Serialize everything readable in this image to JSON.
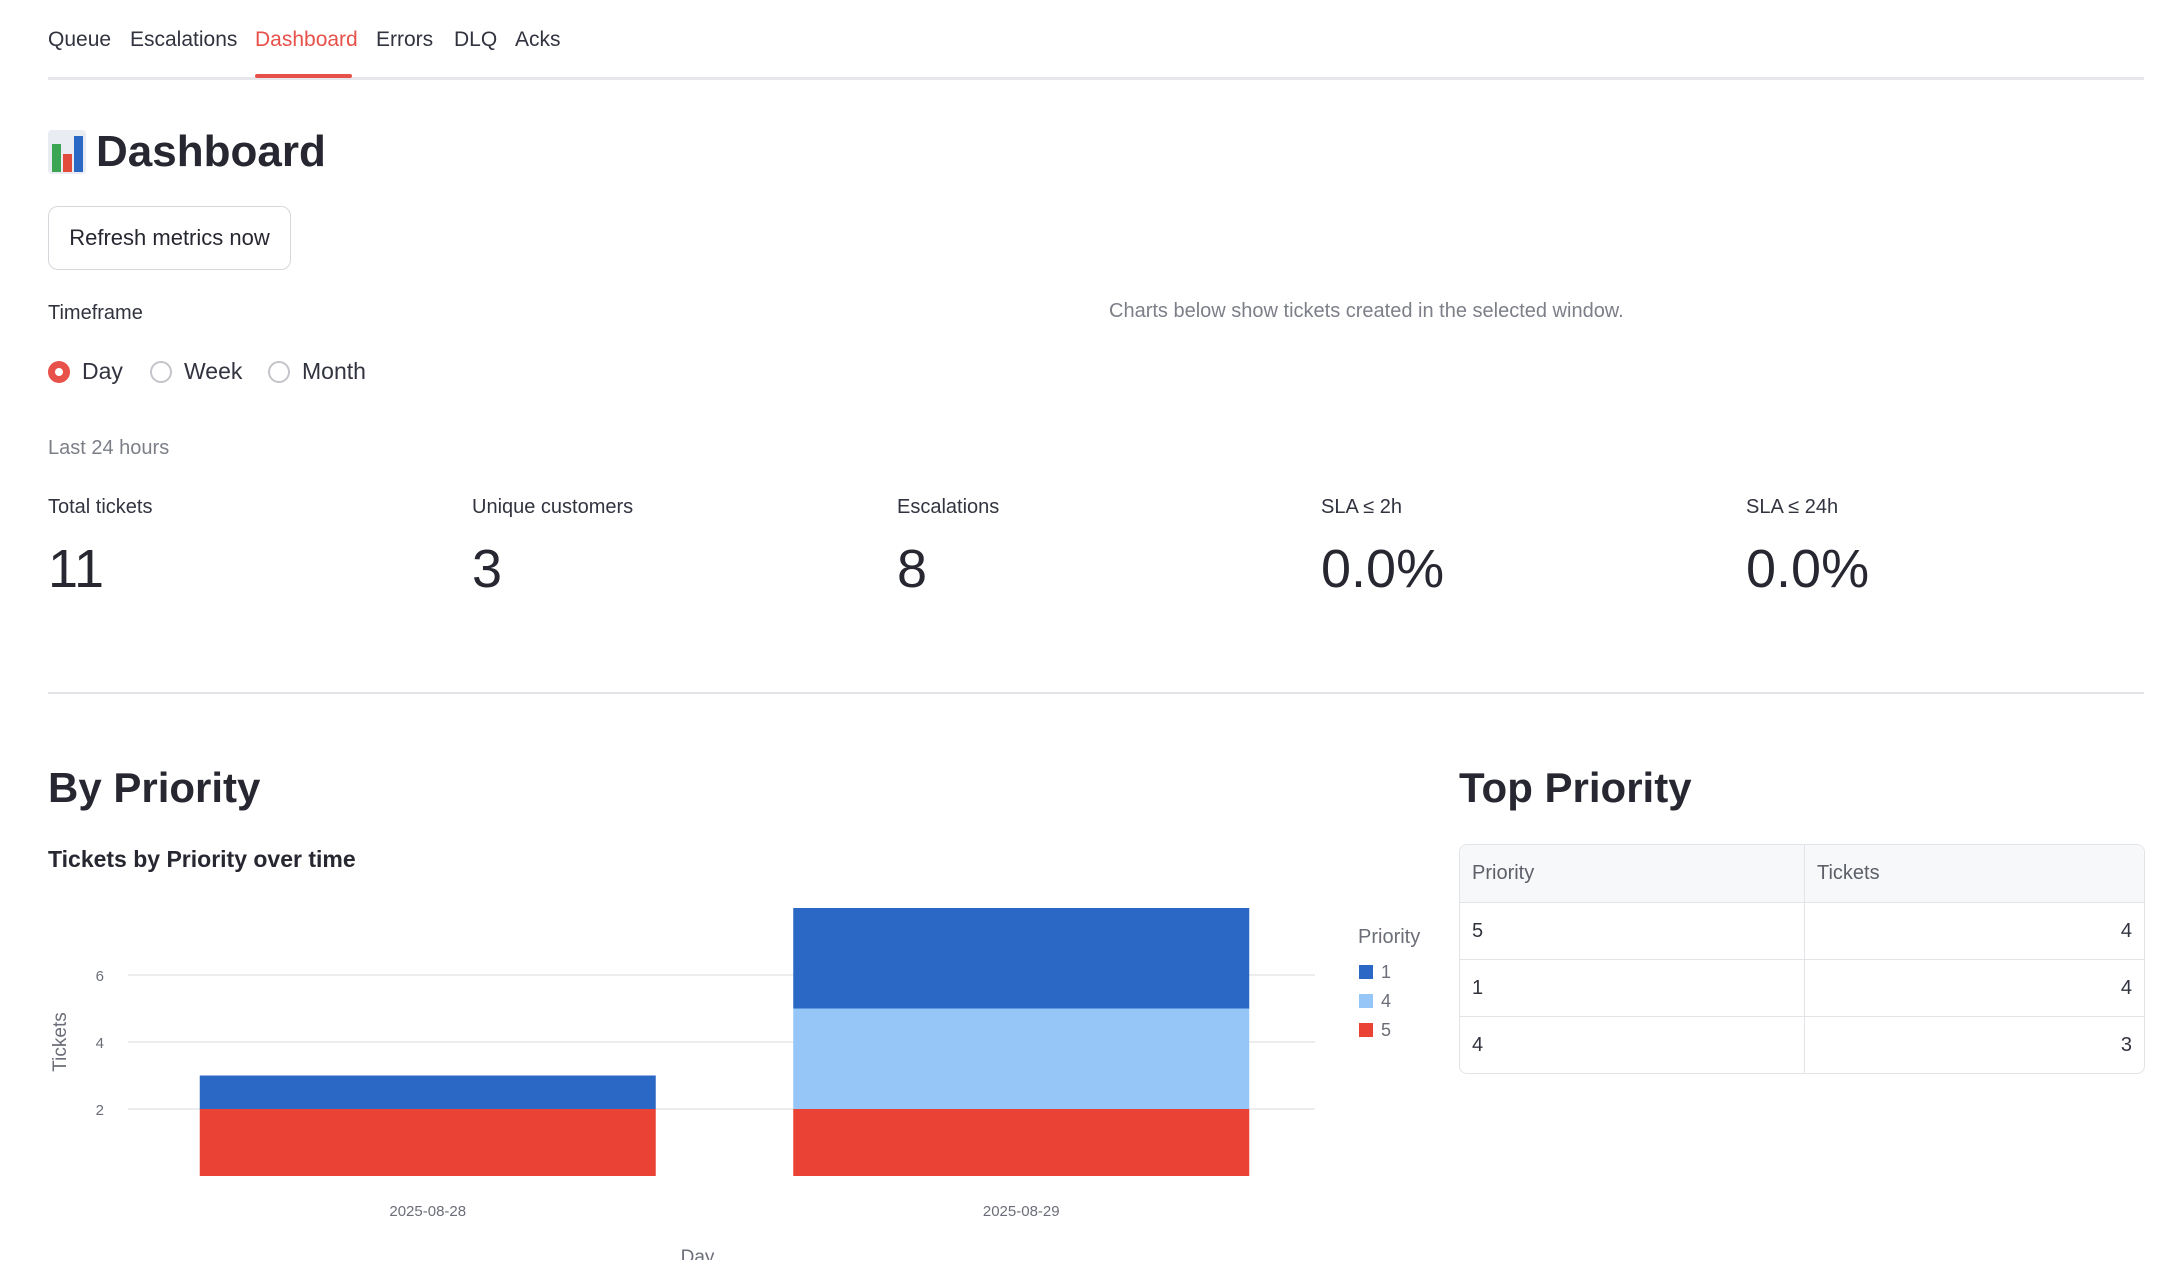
{
  "tabs": [
    {
      "label": "Queue",
      "active": false
    },
    {
      "label": "Escalations",
      "active": false
    },
    {
      "label": "Dashboard",
      "active": true
    },
    {
      "label": "Errors",
      "active": false
    },
    {
      "label": "DLQ",
      "active": false
    },
    {
      "label": "Acks",
      "active": false
    }
  ],
  "page": {
    "title": "Dashboard",
    "title_icon": "bar-chart-icon"
  },
  "refresh_button": "Refresh metrics now",
  "timeframe": {
    "label": "Timeframe",
    "options": [
      "Day",
      "Week",
      "Month"
    ],
    "selected": "Day",
    "window_label": "Last 24 hours"
  },
  "charts_note": "Charts below show tickets created in the selected window.",
  "metrics": [
    {
      "label": "Total tickets",
      "value": "11"
    },
    {
      "label": "Unique customers",
      "value": "3"
    },
    {
      "label": "Escalations",
      "value": "8"
    },
    {
      "label": "SLA ≤ 2h",
      "value": "0.0%"
    },
    {
      "label": "SLA ≤ 24h",
      "value": "0.0%"
    }
  ],
  "by_priority": {
    "heading": "By Priority",
    "chart_title": "Tickets by Priority over time"
  },
  "chart_data": {
    "type": "bar",
    "stacked": true,
    "title": "Tickets by Priority over time",
    "xlabel": "Day",
    "ylabel": "Tickets",
    "categories": [
      "2025-08-28",
      "2025-08-29"
    ],
    "series": [
      {
        "name": "5",
        "color": "#ea4336",
        "values": [
          2,
          2
        ]
      },
      {
        "name": "4",
        "color": "#95c6f7",
        "values": [
          0,
          3
        ]
      },
      {
        "name": "1",
        "color": "#2b67c4",
        "values": [
          1,
          3
        ]
      }
    ],
    "legend_title": "Priority",
    "legend_order": [
      "1",
      "4",
      "5"
    ],
    "yticks": [
      2,
      4,
      6
    ],
    "ylim": [
      0,
      8
    ],
    "grid": true,
    "legend_position": "right"
  },
  "top_priority": {
    "heading": "Top Priority",
    "columns": [
      "Priority",
      "Tickets"
    ],
    "rows": [
      {
        "priority": "5",
        "tickets": "4"
      },
      {
        "priority": "1",
        "tickets": "4"
      },
      {
        "priority": "4",
        "tickets": "3"
      }
    ]
  }
}
